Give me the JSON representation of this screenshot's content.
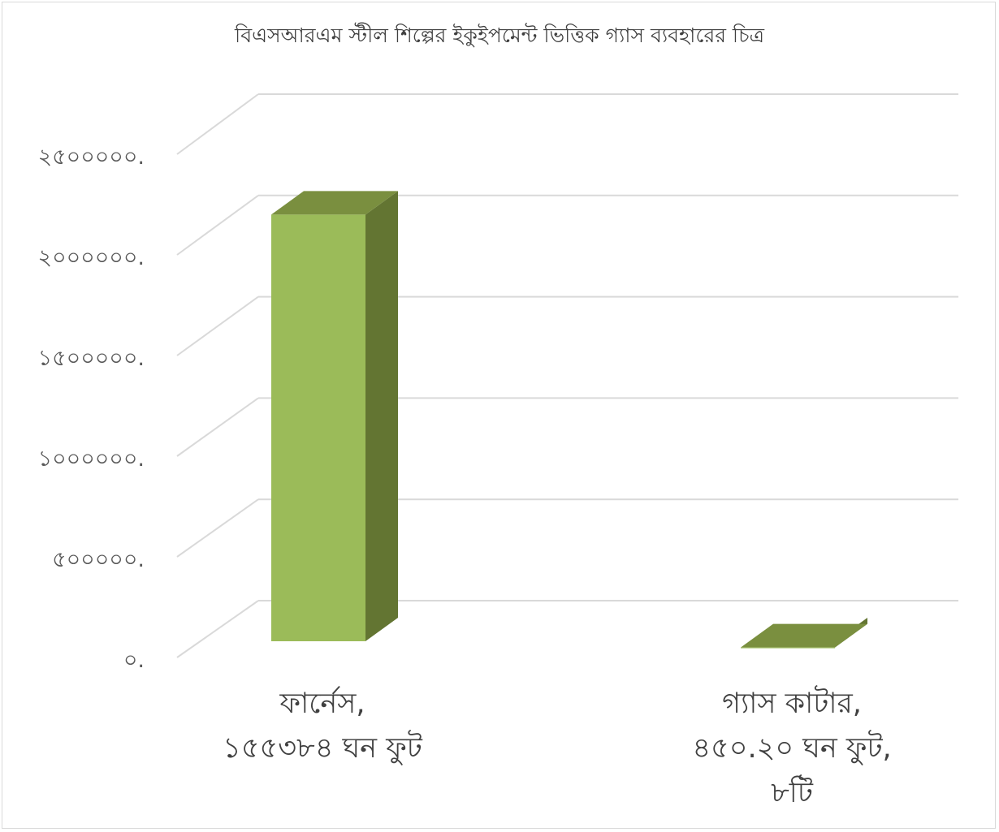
{
  "chart_data": {
    "type": "bar",
    "title": "বিএসআরএম স্টীল শিল্পের ইকুইপমেন্ট ভিত্তিক গ্যাস ব্যবহারের চিত্র",
    "categories": [
      [
        "ফার্নেস,",
        "১৫৫৩৮৪ ঘন ফুট"
      ],
      [
        "গ্যাস কাটার,",
        "৪৫০.২০ ঘন ফুট,",
        "৮টি"
      ]
    ],
    "values": [
      2200000,
      50000
    ],
    "ylim": [
      0,
      2500000
    ],
    "ytick_labels": [
      "০.",
      "৫০০০০০.",
      "১০০০০০০.",
      "১৫০০০০০.",
      "২০০০০০০.",
      "২৫০০০০০."
    ],
    "grid": true,
    "legend": "none",
    "colors": {
      "bar_front": "#9bbb59",
      "bar_top": "#7a8f3f",
      "bar_side": "#637532",
      "grid": "#d9d9d9",
      "text": "#595959"
    }
  }
}
